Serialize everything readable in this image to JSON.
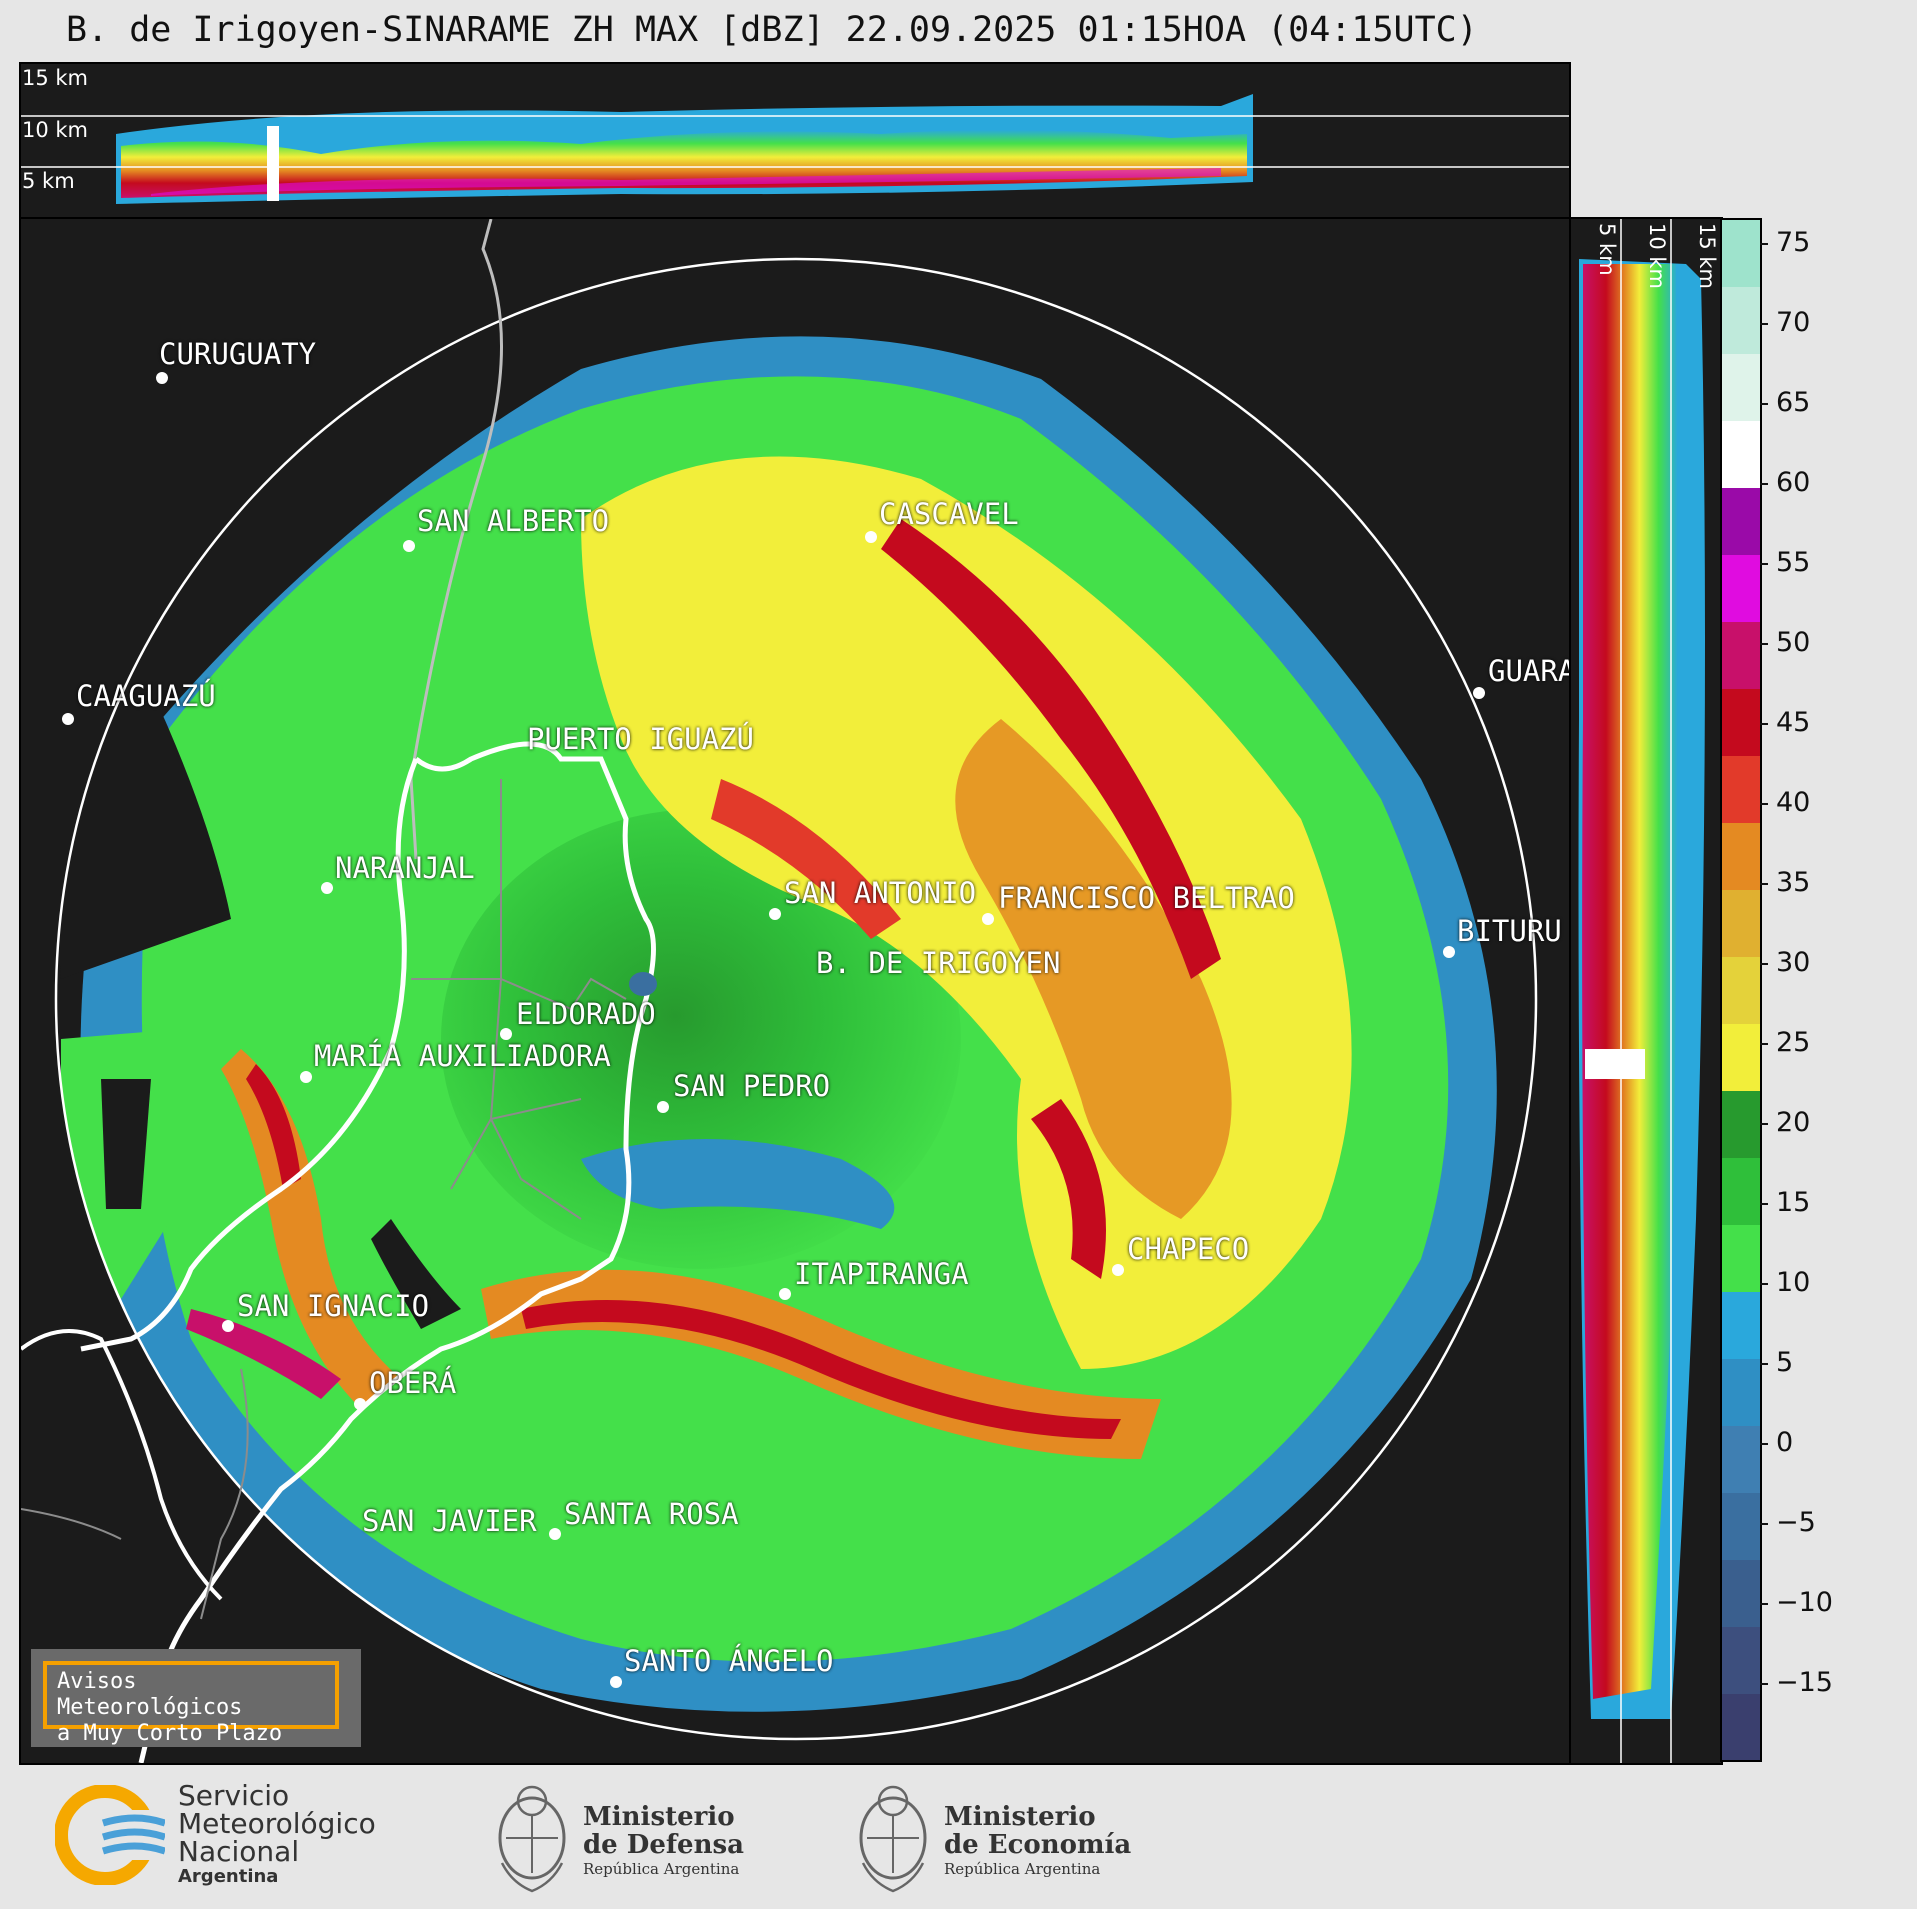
{
  "title": "B. de Irigoyen-SINARAME ZH MAX [dBZ] 22.09.2025 01:15HOA (04:15UTC)",
  "top_panel": {
    "heights": [
      "15 km",
      "10 km",
      "5 km"
    ]
  },
  "right_panel": {
    "heights": [
      "5 km",
      "10 km",
      "15 km"
    ]
  },
  "cities": [
    {
      "name": "CURUGUATY"
    },
    {
      "name": "SAN ALBERTO"
    },
    {
      "name": "CASCAVEL"
    },
    {
      "name": "CAAGUAZÚ"
    },
    {
      "name": "GUARA"
    },
    {
      "name": "PUERTO IGUAZÚ"
    },
    {
      "name": "NARANJAL"
    },
    {
      "name": "SAN ANTONIO"
    },
    {
      "name": "FRANCISCO BELTRAO"
    },
    {
      "name": "BITURU"
    },
    {
      "name": "B. DE IRIGOYEN"
    },
    {
      "name": "ELDORADO"
    },
    {
      "name": "MARÍA AUXILIADORA"
    },
    {
      "name": "SAN PEDRO"
    },
    {
      "name": "CHAPECO"
    },
    {
      "name": "ITAPIRANGA"
    },
    {
      "name": "SAN IGNACIO"
    },
    {
      "name": "OBERÁ"
    },
    {
      "name": "SAN JAVIER"
    },
    {
      "name": "SANTA ROSA"
    },
    {
      "name": "SANTO ÁNGELO"
    }
  ],
  "warning": {
    "line1": "Avisos Meteorológicos",
    "line2": "a Muy Corto Plazo"
  },
  "colorbar": {
    "ticks": [
      "75",
      "70",
      "65",
      "60",
      "55",
      "50",
      "45",
      "40",
      "35",
      "30",
      "25",
      "20",
      "15",
      "10",
      "5",
      "0",
      "−5",
      "−10",
      "−15"
    ],
    "colors": [
      "#3a3f6e",
      "#3d4f7e",
      "#3a5f8e",
      "#3a6fa0",
      "#3f7fb2",
      "#2f8fc4",
      "#2aa8dc",
      "#44e04a",
      "#2fbf3a",
      "#279a2e",
      "#f2ee3a",
      "#e4d23a",
      "#e0b030",
      "#e48a22",
      "#e23a2a",
      "#c40a1e",
      "#c8106a",
      "#e00ce0",
      "#9a0aa8",
      "#ffffff",
      "#dff3ea",
      "#bfeadb",
      "#9ee3cc"
    ]
  },
  "footer": {
    "smn": {
      "line1": "Servicio",
      "line2": "Meteorológico",
      "line3": "Nacional",
      "line4": "Argentina"
    },
    "defensa": {
      "line1": "Ministerio",
      "line2": "de Defensa",
      "line3": "República Argentina"
    },
    "economia": {
      "line1": "Ministerio",
      "line2": "de Economía",
      "line3": "República Argentina"
    }
  }
}
